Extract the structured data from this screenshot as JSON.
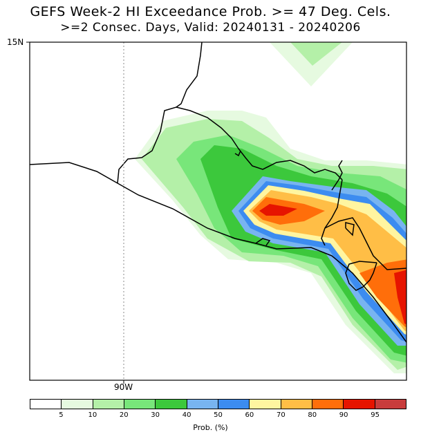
{
  "title_line1": "GEFS Week-2 HI Exceedance Prob. >= 47 Deg. Cels.",
  "title_line2": ">=2 Consec. Days, Valid: 20240131 - 20240206",
  "axes": {
    "lat_label": "15N",
    "lon_label": "90W"
  },
  "legend": {
    "label": "Prob. (%)",
    "ticks": [
      "5",
      "10",
      "20",
      "30",
      "40",
      "50",
      "60",
      "70",
      "80",
      "90",
      "95"
    ],
    "colors": [
      "#ffffff",
      "#e6fae0",
      "#b4f0a8",
      "#78e67a",
      "#3cc83c",
      "#78b4f0",
      "#3c8cf0",
      "#fff5a0",
      "#ffbe46",
      "#ff6e0a",
      "#e61400",
      "#c83c3c"
    ]
  },
  "palette": {
    "p5": "#e6fae0",
    "p10": "#b4f0a8",
    "p20": "#78e67a",
    "p30": "#3cc83c",
    "p40": "#78b4f0",
    "p50": "#3c8cf0",
    "p60": "#fff5a0",
    "p70": "#ffbe46",
    "p80": "#ff6e0a",
    "p90": "#e61400"
  }
}
